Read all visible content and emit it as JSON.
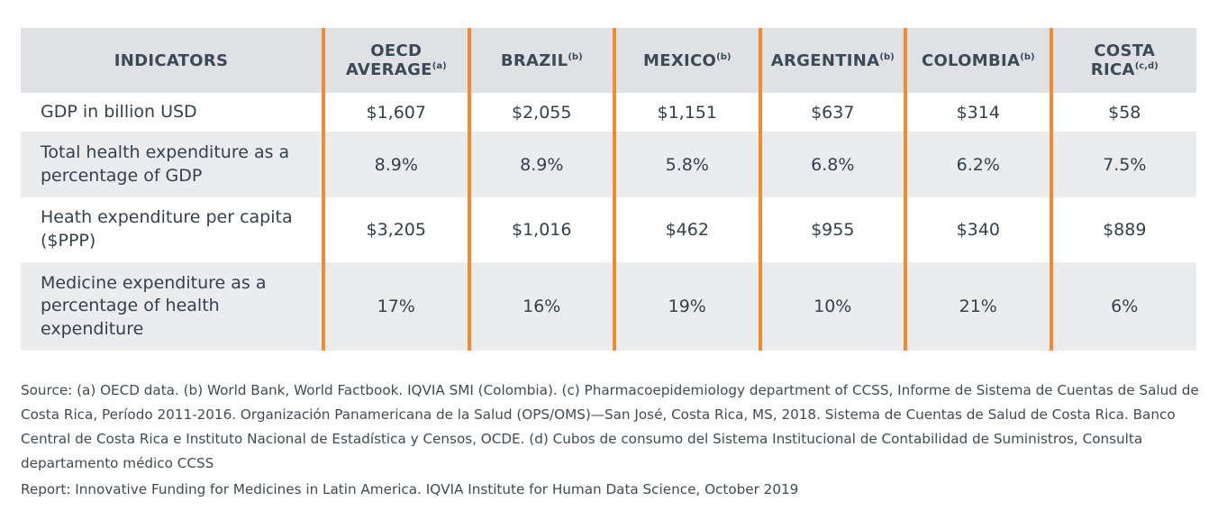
{
  "table": {
    "headers": [
      {
        "label": "INDICATORS",
        "sup": ""
      },
      {
        "label": "OECD AVERAGE",
        "sup": "(a)"
      },
      {
        "label": "BRAZIL",
        "sup": "(b)"
      },
      {
        "label": "MEXICO",
        "sup": "(b)"
      },
      {
        "label": "ARGENTINA",
        "sup": "(b)"
      },
      {
        "label": "COLOMBIA",
        "sup": "(b)"
      },
      {
        "label": "COSTA RICA",
        "sup": "(c,d)"
      }
    ],
    "rows": [
      {
        "indicator": "GDP in billion USD",
        "values": [
          "$1,607",
          "$2,055",
          "$1,151",
          "$637",
          "$314",
          "$58"
        ]
      },
      {
        "indicator": "Total health expenditure as a percentage of GDP",
        "values": [
          "8.9%",
          "8.9%",
          "5.8%",
          "6.8%",
          "6.2%",
          "7.5%"
        ]
      },
      {
        "indicator": "Heath expenditure per capita ($PPP)",
        "values": [
          "$3,205",
          "$1,016",
          "$462",
          "$955",
          "$340",
          "$889"
        ]
      },
      {
        "indicator": "Medicine expenditure as a percentage of health expenditure",
        "values": [
          "17%",
          "16%",
          "19%",
          "10%",
          "21%",
          "6%"
        ]
      }
    ]
  },
  "notes": {
    "source": "Source: (a) OECD data. (b) World Bank, World Factbook. IQVIA SMI (Colombia). (c) Pharmacoepidemiology department of CCSS, Informe de Sistema de Cuentas de Salud de Costa Rica, Período 2011-2016. Organización Panamericana de la Salud (OPS/OMS)—San José, Costa Rica, MS, 2018. Sistema de Cuentas de Salud de Costa Rica. Banco Central de Costa Rica e Instituto Nacional de Estadística y Censos, OCDE. (d) Cubos de consumo del Sistema Institucional de Contabilidad de Suministros, Consulta departamento médico CCSS",
    "report": "Report: Innovative Funding for Medicines in Latin America. IQVIA Institute for Human Data Science, October 2019"
  },
  "colors": {
    "header_bg": "#dfe1e4",
    "row_shade": "#ebecee",
    "separator": "#f28a2e",
    "text": "#33414d"
  }
}
